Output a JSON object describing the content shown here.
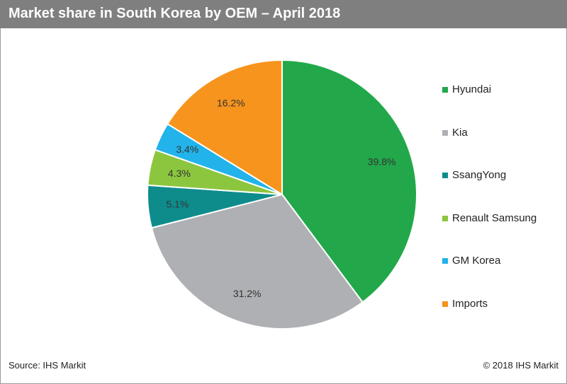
{
  "header": {
    "title": "Market share in South Korea by OEM – April 2018"
  },
  "footer": {
    "source": "Source: IHS Markit",
    "copyright": "© 2018 IHS Markit"
  },
  "chart_data": {
    "type": "pie",
    "title": "Market share in South Korea by OEM – April 2018",
    "legend_position": "right",
    "slices": [
      {
        "name": "Hyundai",
        "value": 39.8,
        "label": "39.8%",
        "color": "#22a84a"
      },
      {
        "name": "Kia",
        "value": 31.2,
        "label": "31.2%",
        "color": "#afb0b3"
      },
      {
        "name": "SsangYong",
        "value": 5.1,
        "label": "5.1%",
        "color": "#0e8c8c"
      },
      {
        "name": "Renault Samsung",
        "value": 4.3,
        "label": "4.3%",
        "color": "#8cc63f"
      },
      {
        "name": "GM Korea",
        "value": 3.4,
        "label": "3.4%",
        "color": "#22b3ea"
      },
      {
        "name": "Imports",
        "value": 16.2,
        "label": "16.2%",
        "color": "#f7941d"
      }
    ]
  }
}
